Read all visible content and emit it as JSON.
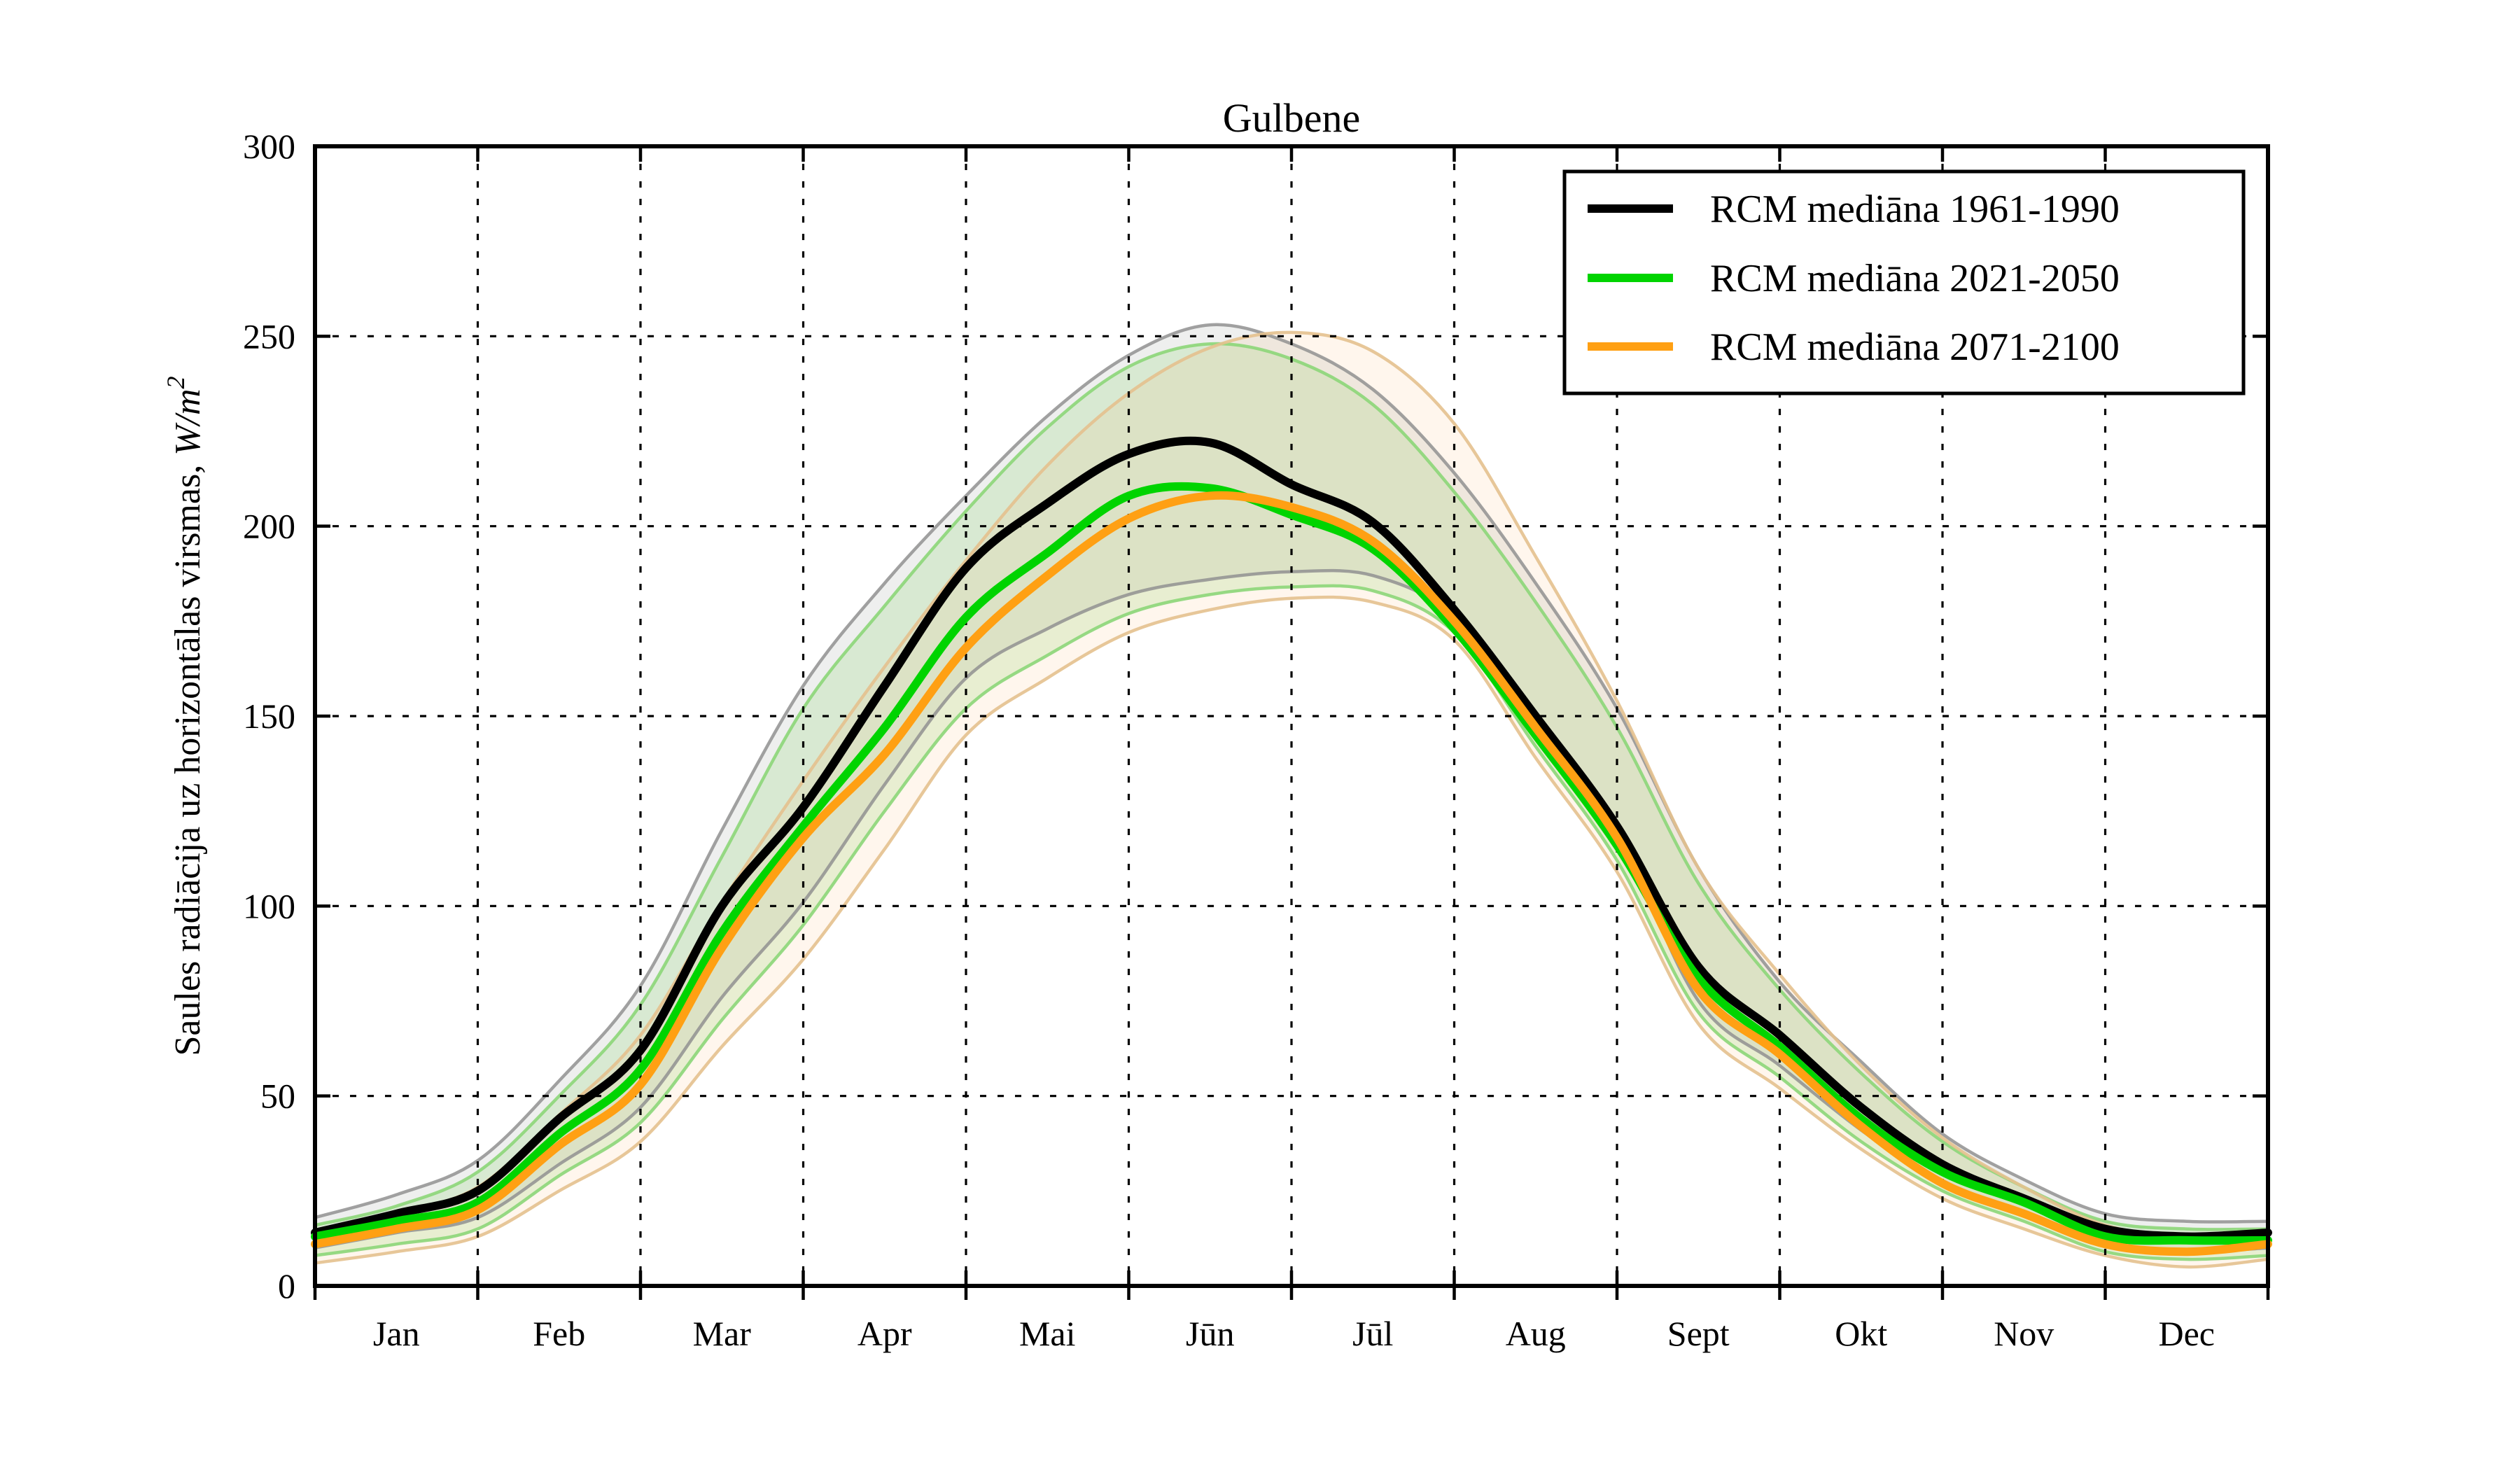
{
  "title": "Gulbene",
  "chart_data": {
    "type": "line",
    "title": "Gulbene",
    "ylabel_text": "Saules radiācija uz horizontālas virsmas, ",
    "ylabel_math": "W/m",
    "ylabel_sup": "2",
    "xlabel": "",
    "ylim": [
      0,
      300
    ],
    "yticks": [
      0,
      50,
      100,
      150,
      200,
      250,
      300
    ],
    "x_categories": [
      "Jan",
      "Feb",
      "Mar",
      "Apr",
      "Mai",
      "Jūn",
      "Jūl",
      "Aug",
      "Sept",
      "Okt",
      "Nov",
      "Dec"
    ],
    "grid": "dotted, at month boundaries and every 50 W/m2",
    "legend_position": "upper right",
    "sample_step_months": 0.5,
    "sample_note": "dense arrays sampled every half month from Jan 1 (0) to Dec 31 (12), 25 points",
    "series": [
      {
        "name": "RCM mediāna 1961-1990",
        "color": "#000000",
        "band_fill": "rgba(125,130,120,0.13)",
        "band_edge": "rgba(145,145,145,0.85)",
        "monthly_median": [
          19,
          44,
          100,
          158,
          206,
          221,
          201,
          150,
          84,
          47,
          23,
          13
        ],
        "median": [
          14,
          19,
          25,
          44,
          62,
          100,
          126,
          158,
          189,
          206,
          219,
          222,
          211,
          201,
          178,
          150,
          121,
          84,
          66,
          47,
          32,
          23,
          15,
          13,
          14
        ],
        "upper": [
          18,
          24,
          33,
          54,
          79,
          120,
          158,
          185,
          208,
          229,
          245,
          253,
          248,
          236,
          214,
          185,
          152,
          110,
          80,
          59,
          40,
          28,
          19,
          17,
          17
        ],
        "lower": [
          10,
          14,
          18,
          32,
          47,
          76,
          101,
          132,
          160,
          173,
          182,
          186,
          188,
          187,
          176,
          147,
          119,
          75,
          58,
          41,
          27,
          19,
          11,
          9,
          10
        ]
      },
      {
        "name": "RCM mediāna 2021-2050",
        "color": "#00d400",
        "band_fill": "rgba(115,205,85,0.18)",
        "band_edge": "rgba(140,214,120,0.9)",
        "monthly_median": [
          17,
          40,
          93,
          147,
          193,
          210,
          194,
          145,
          81,
          44,
          22,
          12
        ],
        "median": [
          13,
          17,
          22,
          40,
          57,
          93,
          121,
          147,
          176,
          193,
          208,
          210,
          203,
          194,
          173,
          145,
          116,
          81,
          63,
          44,
          30,
          22,
          13,
          12,
          12
        ],
        "upper": [
          16,
          21,
          30,
          50,
          74,
          113,
          152,
          179,
          204,
          226,
          242,
          248,
          244,
          232,
          209,
          180,
          147,
          106,
          78,
          56,
          38,
          26,
          17,
          15,
          15
        ],
        "lower": [
          8,
          11,
          15,
          29,
          43,
          70,
          95,
          125,
          152,
          166,
          177,
          182,
          184,
          183,
          172,
          142,
          112,
          72,
          55,
          38,
          25,
          17,
          9,
          7,
          8
        ]
      },
      {
        "name": "RCM mediāna 2071-2100",
        "color": "#ffa013",
        "band_fill": "rgba(255,175,90,0.11)",
        "band_edge": "rgba(228,193,142,0.9)",
        "monthly_median": [
          15,
          37,
          89,
          140,
          187,
          208,
          196,
          147,
          78,
          42,
          19,
          9
        ],
        "median": [
          11,
          15,
          20,
          37,
          53,
          89,
          118,
          140,
          168,
          187,
          202,
          208,
          205,
          196,
          175,
          147,
          118,
          78,
          61,
          42,
          27,
          19,
          11,
          9,
          11
        ],
        "upper": [
          14,
          19,
          26,
          45,
          66,
          101,
          133,
          163,
          191,
          216,
          235,
          247,
          251,
          246,
          227,
          192,
          154,
          110,
          82,
          58,
          39,
          26,
          16,
          13,
          14
        ],
        "lower": [
          6,
          9,
          13,
          25,
          38,
          63,
          86,
          115,
          145,
          160,
          172,
          178,
          181,
          180,
          170,
          139,
          109,
          69,
          52,
          36,
          23,
          15,
          8,
          5,
          7
        ]
      }
    ]
  },
  "legend": {
    "items": [
      {
        "label": "RCM mediāna 1961-1990",
        "color": "#000000"
      },
      {
        "label": "RCM mediāna 2021-2050",
        "color": "#00d400"
      },
      {
        "label": "RCM mediāna 2071-2100",
        "color": "#ffa013"
      }
    ]
  }
}
